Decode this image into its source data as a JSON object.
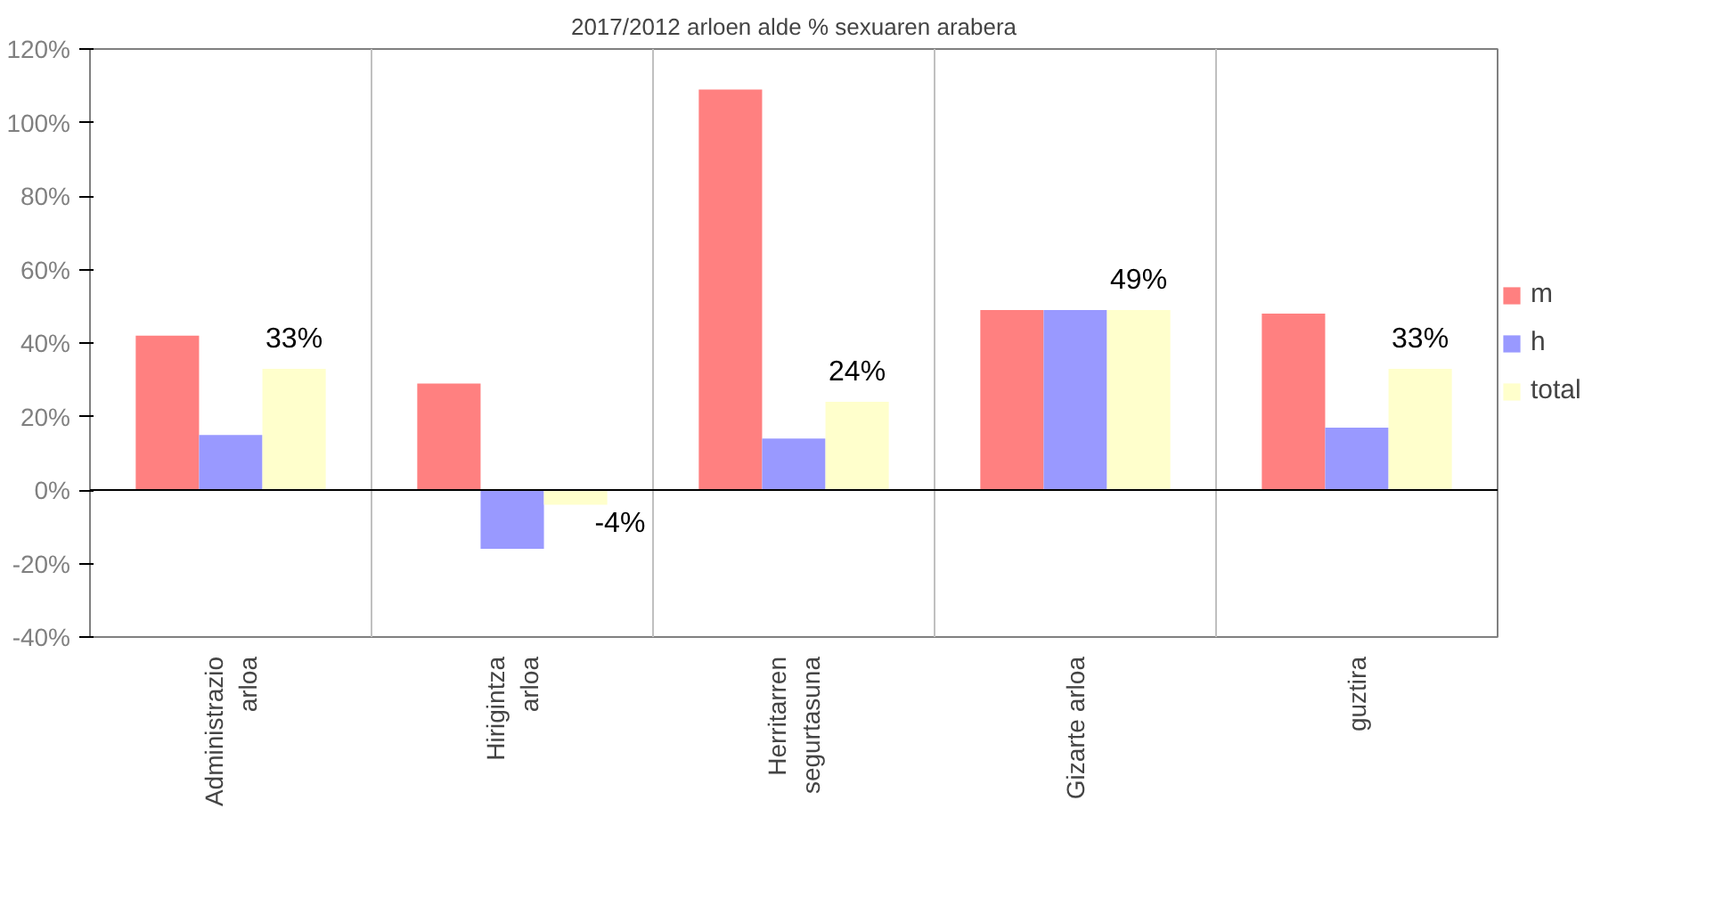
{
  "chart_data": {
    "type": "bar",
    "title": "2017/2012 arloen alde % sexuaren arabera",
    "categories": [
      "Administrazio arloa",
      "Hirigintza arloa",
      "Herritarren segurtasuna",
      "Gizarte arloa",
      "guztira"
    ],
    "series": [
      {
        "name": "m",
        "color": "#ff8080",
        "values": [
          42,
          29,
          109,
          49,
          48
        ]
      },
      {
        "name": "h",
        "color": "#9999ff",
        "values": [
          15,
          -16,
          14,
          49,
          17
        ]
      },
      {
        "name": "total",
        "color": "#ffffcc",
        "values": [
          33,
          -4,
          24,
          49,
          33
        ],
        "value_labels": [
          "33%",
          "-4%",
          "24%",
          "49%",
          "33%"
        ]
      }
    ],
    "ylim": [
      -40,
      120
    ],
    "yticks": [
      {
        "value": -40,
        "label": "-40%"
      },
      {
        "value": -20,
        "label": "-20%"
      },
      {
        "value": 0,
        "label": "0%"
      },
      {
        "value": 20,
        "label": "20%"
      },
      {
        "value": 40,
        "label": "40%"
      },
      {
        "value": 60,
        "label": "60%"
      },
      {
        "value": 80,
        "label": "80%"
      },
      {
        "value": 100,
        "label": "100%"
      },
      {
        "value": 120,
        "label": "120%"
      }
    ],
    "grid": "x",
    "legend": "right"
  }
}
